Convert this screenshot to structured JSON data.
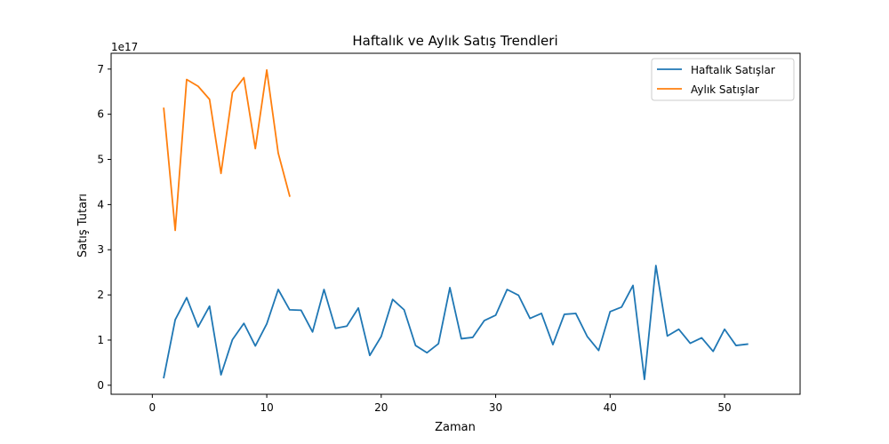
{
  "chart_data": {
    "type": "line",
    "title": "Haftalık ve Aylık Satış Trendleri",
    "xlabel": "Zaman",
    "ylabel": "Satış Tutarı",
    "y_offset_label": "1e17",
    "xlim": [
      -3.6,
      56.6
    ],
    "ylim": [
      -0.2,
      7.35
    ],
    "x_ticks": [
      0,
      10,
      20,
      30,
      40,
      50
    ],
    "y_ticks": [
      0,
      1,
      2,
      3,
      4,
      5,
      6,
      7
    ],
    "legend_position": "top-right",
    "grid": false,
    "series": [
      {
        "name": "Haftalık Satışlar",
        "color": "#1f77b4",
        "x": [
          1,
          2,
          3,
          4,
          5,
          6,
          7,
          8,
          9,
          10,
          11,
          12,
          13,
          14,
          15,
          16,
          17,
          18,
          19,
          20,
          21,
          22,
          23,
          24,
          25,
          26,
          27,
          28,
          29,
          30,
          31,
          32,
          33,
          34,
          35,
          36,
          37,
          38,
          39,
          40,
          41,
          42,
          43,
          44,
          45,
          46,
          47,
          48,
          49,
          50,
          51,
          52
        ],
        "values": [
          0.17,
          1.45,
          1.94,
          1.29,
          1.75,
          0.23,
          1.01,
          1.37,
          0.87,
          1.36,
          2.12,
          1.67,
          1.66,
          1.18,
          2.12,
          1.26,
          1.31,
          1.71,
          0.66,
          1.08,
          1.9,
          1.67,
          0.88,
          0.72,
          0.92,
          2.16,
          1.03,
          1.06,
          1.43,
          1.55,
          2.12,
          1.99,
          1.48,
          1.59,
          0.9,
          1.57,
          1.59,
          1.08,
          0.77,
          1.63,
          1.73,
          2.21,
          0.13,
          2.65,
          1.09,
          1.24,
          0.93,
          1.05,
          0.75,
          1.24,
          0.88,
          0.91
        ]
      },
      {
        "name": "Aylık Satışlar",
        "color": "#ff7f0e",
        "x": [
          1,
          2,
          3,
          4,
          5,
          6,
          7,
          8,
          9,
          10,
          11,
          12
        ],
        "values": [
          6.13,
          3.43,
          6.77,
          6.62,
          6.33,
          4.69,
          6.48,
          6.81,
          5.24,
          6.98,
          5.14,
          4.19
        ]
      }
    ]
  }
}
